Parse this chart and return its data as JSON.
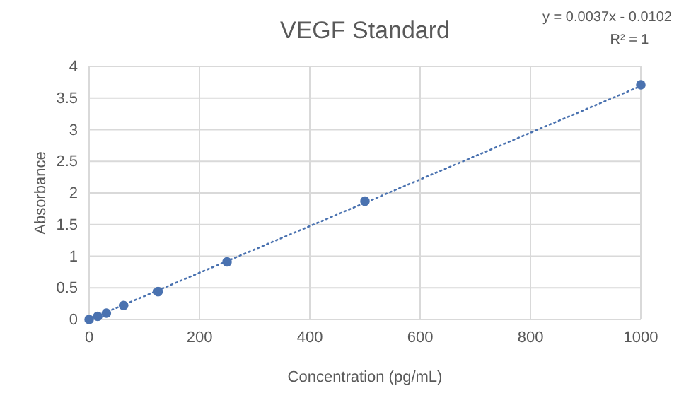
{
  "chart_data": {
    "type": "scatter",
    "title": "VEGF Standard",
    "xlabel": "Concentration (pg/mL)",
    "ylabel": "Absorbance",
    "annotations": [
      "y = 0.0037x - 0.0102",
      "R² = 1"
    ],
    "xlim": [
      0,
      1000
    ],
    "xticks": [
      0,
      200,
      400,
      600,
      800,
      1000
    ],
    "ylim": [
      0,
      4
    ],
    "yticks": [
      0,
      0.5,
      1,
      1.5,
      2,
      2.5,
      3,
      3.5,
      4
    ],
    "grid": true,
    "marker": "circle",
    "series": [
      {
        "color": "#4a72b0",
        "x": [
          0,
          15.6,
          31.25,
          62.5,
          125,
          250,
          500,
          1000
        ],
        "values": [
          0,
          0.05,
          0.1,
          0.22,
          0.44,
          0.91,
          1.87,
          3.71
        ]
      },
      {
        "type": "line",
        "color": "#4a72b0",
        "line_style": "dotted",
        "marker": "none",
        "x": [
          0,
          1000
        ],
        "values": [
          0,
          3.69
        ]
      }
    ]
  }
}
